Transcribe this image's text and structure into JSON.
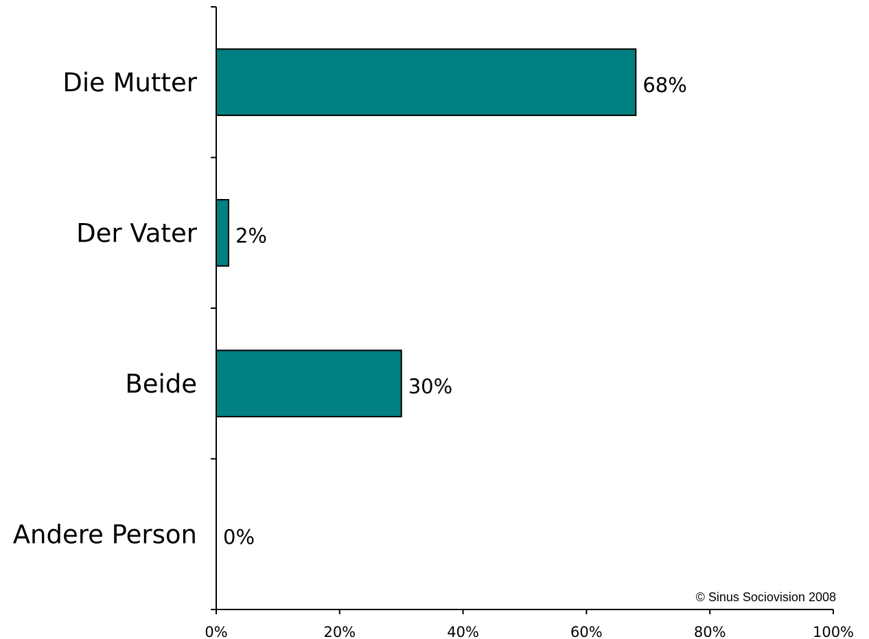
{
  "chart_data": {
    "type": "bar",
    "orientation": "horizontal",
    "categories": [
      "Die Mutter",
      "Der Vater",
      "Beide",
      "Andere Person"
    ],
    "values": [
      68,
      2,
      30,
      0
    ],
    "data_labels": [
      "68%",
      "2%",
      "30%",
      "0%"
    ],
    "x_ticks": [
      "0%",
      "20%",
      "40%",
      "60%",
      "80%",
      "100%"
    ],
    "xlim": [
      0,
      100
    ],
    "grid": false,
    "legend": "none",
    "bar_color": "#008080",
    "bar_border_color": "#000000",
    "annotation": "© Sinus Sociovision 2008"
  }
}
